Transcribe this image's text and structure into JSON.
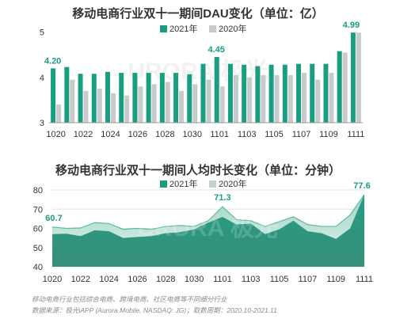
{
  "chart_data": [
    {
      "type": "bar",
      "title": "移动电商行业双十一期间DAU变化（单位：亿）",
      "categories": [
        "1020",
        "1021",
        "1022",
        "1023",
        "1024",
        "1025",
        "1026",
        "1027",
        "1028",
        "1029",
        "1030",
        "1031",
        "1101",
        "1102",
        "1103",
        "1104",
        "1105",
        "1106",
        "1107",
        "1108",
        "1109",
        "1110",
        "1111"
      ],
      "tick_labels": [
        "1020",
        "1022",
        "1024",
        "1026",
        "1028",
        "1030",
        "1101",
        "1103",
        "1105",
        "1107",
        "1109",
        "1111"
      ],
      "series": [
        {
          "name": "2021年",
          "color": "#1a9e82",
          "values": [
            4.2,
            4.23,
            4.08,
            4.08,
            4.12,
            4.1,
            4.1,
            4.1,
            4.1,
            4.1,
            4.07,
            4.3,
            4.45,
            4.3,
            4.28,
            4.25,
            4.28,
            4.28,
            4.3,
            4.3,
            4.3,
            4.58,
            4.99
          ]
        },
        {
          "name": "2020年",
          "color": "#c8cbcc",
          "values": [
            3.4,
            3.95,
            3.7,
            3.75,
            3.65,
            3.6,
            3.8,
            3.85,
            3.9,
            3.7,
            3.85,
            3.95,
            3.8,
            4.05,
            4.0,
            4.05,
            4.05,
            4.05,
            4.1,
            3.95,
            4.1,
            4.55,
            4.99
          ]
        }
      ],
      "data_labels": [
        {
          "index": 0,
          "value": "4.20"
        },
        {
          "index": 12,
          "value": "4.45"
        },
        {
          "index": 22,
          "value": "4.99"
        }
      ],
      "yticks": [
        "3",
        "4",
        "5"
      ],
      "ylim": [
        3,
        5.15
      ]
    },
    {
      "type": "area",
      "title": "移动电商行业双十一期间人均时长变化（单位：分钟）",
      "categories": [
        "1020",
        "1021",
        "1022",
        "1023",
        "1024",
        "1025",
        "1026",
        "1027",
        "1028",
        "1029",
        "1030",
        "1031",
        "1101",
        "1102",
        "1103",
        "1104",
        "1105",
        "1106",
        "1107",
        "1108",
        "1109",
        "1110",
        "1111"
      ],
      "tick_labels": [
        "1020",
        "1022",
        "1024",
        "1026",
        "1028",
        "1030",
        "1101",
        "1103",
        "1105",
        "1107",
        "1109",
        "1111"
      ],
      "series": [
        {
          "name": "2021年",
          "color": "#1a9e82",
          "values": [
            60.7,
            60,
            60.2,
            63,
            62.5,
            59.5,
            60,
            59.5,
            61,
            61.5,
            61,
            64,
            71.3,
            64.5,
            64,
            61,
            63.5,
            66,
            62,
            61,
            61,
            67,
            77.6
          ]
        },
        {
          "name": "2020年",
          "color": "#c3d2cc",
          "values": [
            57,
            57.2,
            56,
            59,
            58.5,
            55,
            55.5,
            56,
            57.5,
            58,
            59.5,
            63,
            66,
            62,
            62.5,
            57,
            59.5,
            64,
            58.5,
            57.5,
            54.5,
            60,
            77.6
          ]
        }
      ],
      "data_labels": [
        {
          "index": 0,
          "value": "60.7"
        },
        {
          "index": 12,
          "value": "71.3"
        },
        {
          "index": 22,
          "value": "77.6"
        }
      ],
      "yticks": [
        "40",
        "50",
        "60",
        "70",
        "80"
      ],
      "ylim": [
        40,
        80
      ]
    }
  ],
  "watermark": "URORA 极光",
  "footnotes": [
    "移动电商行业包括综合电商、跨境电商、社区电商等不同细分行业",
    "数据来源：极光iAPP (Aurora Mobile, NASDAQ: JG)；取数周期：2020.10-2021.11"
  ]
}
